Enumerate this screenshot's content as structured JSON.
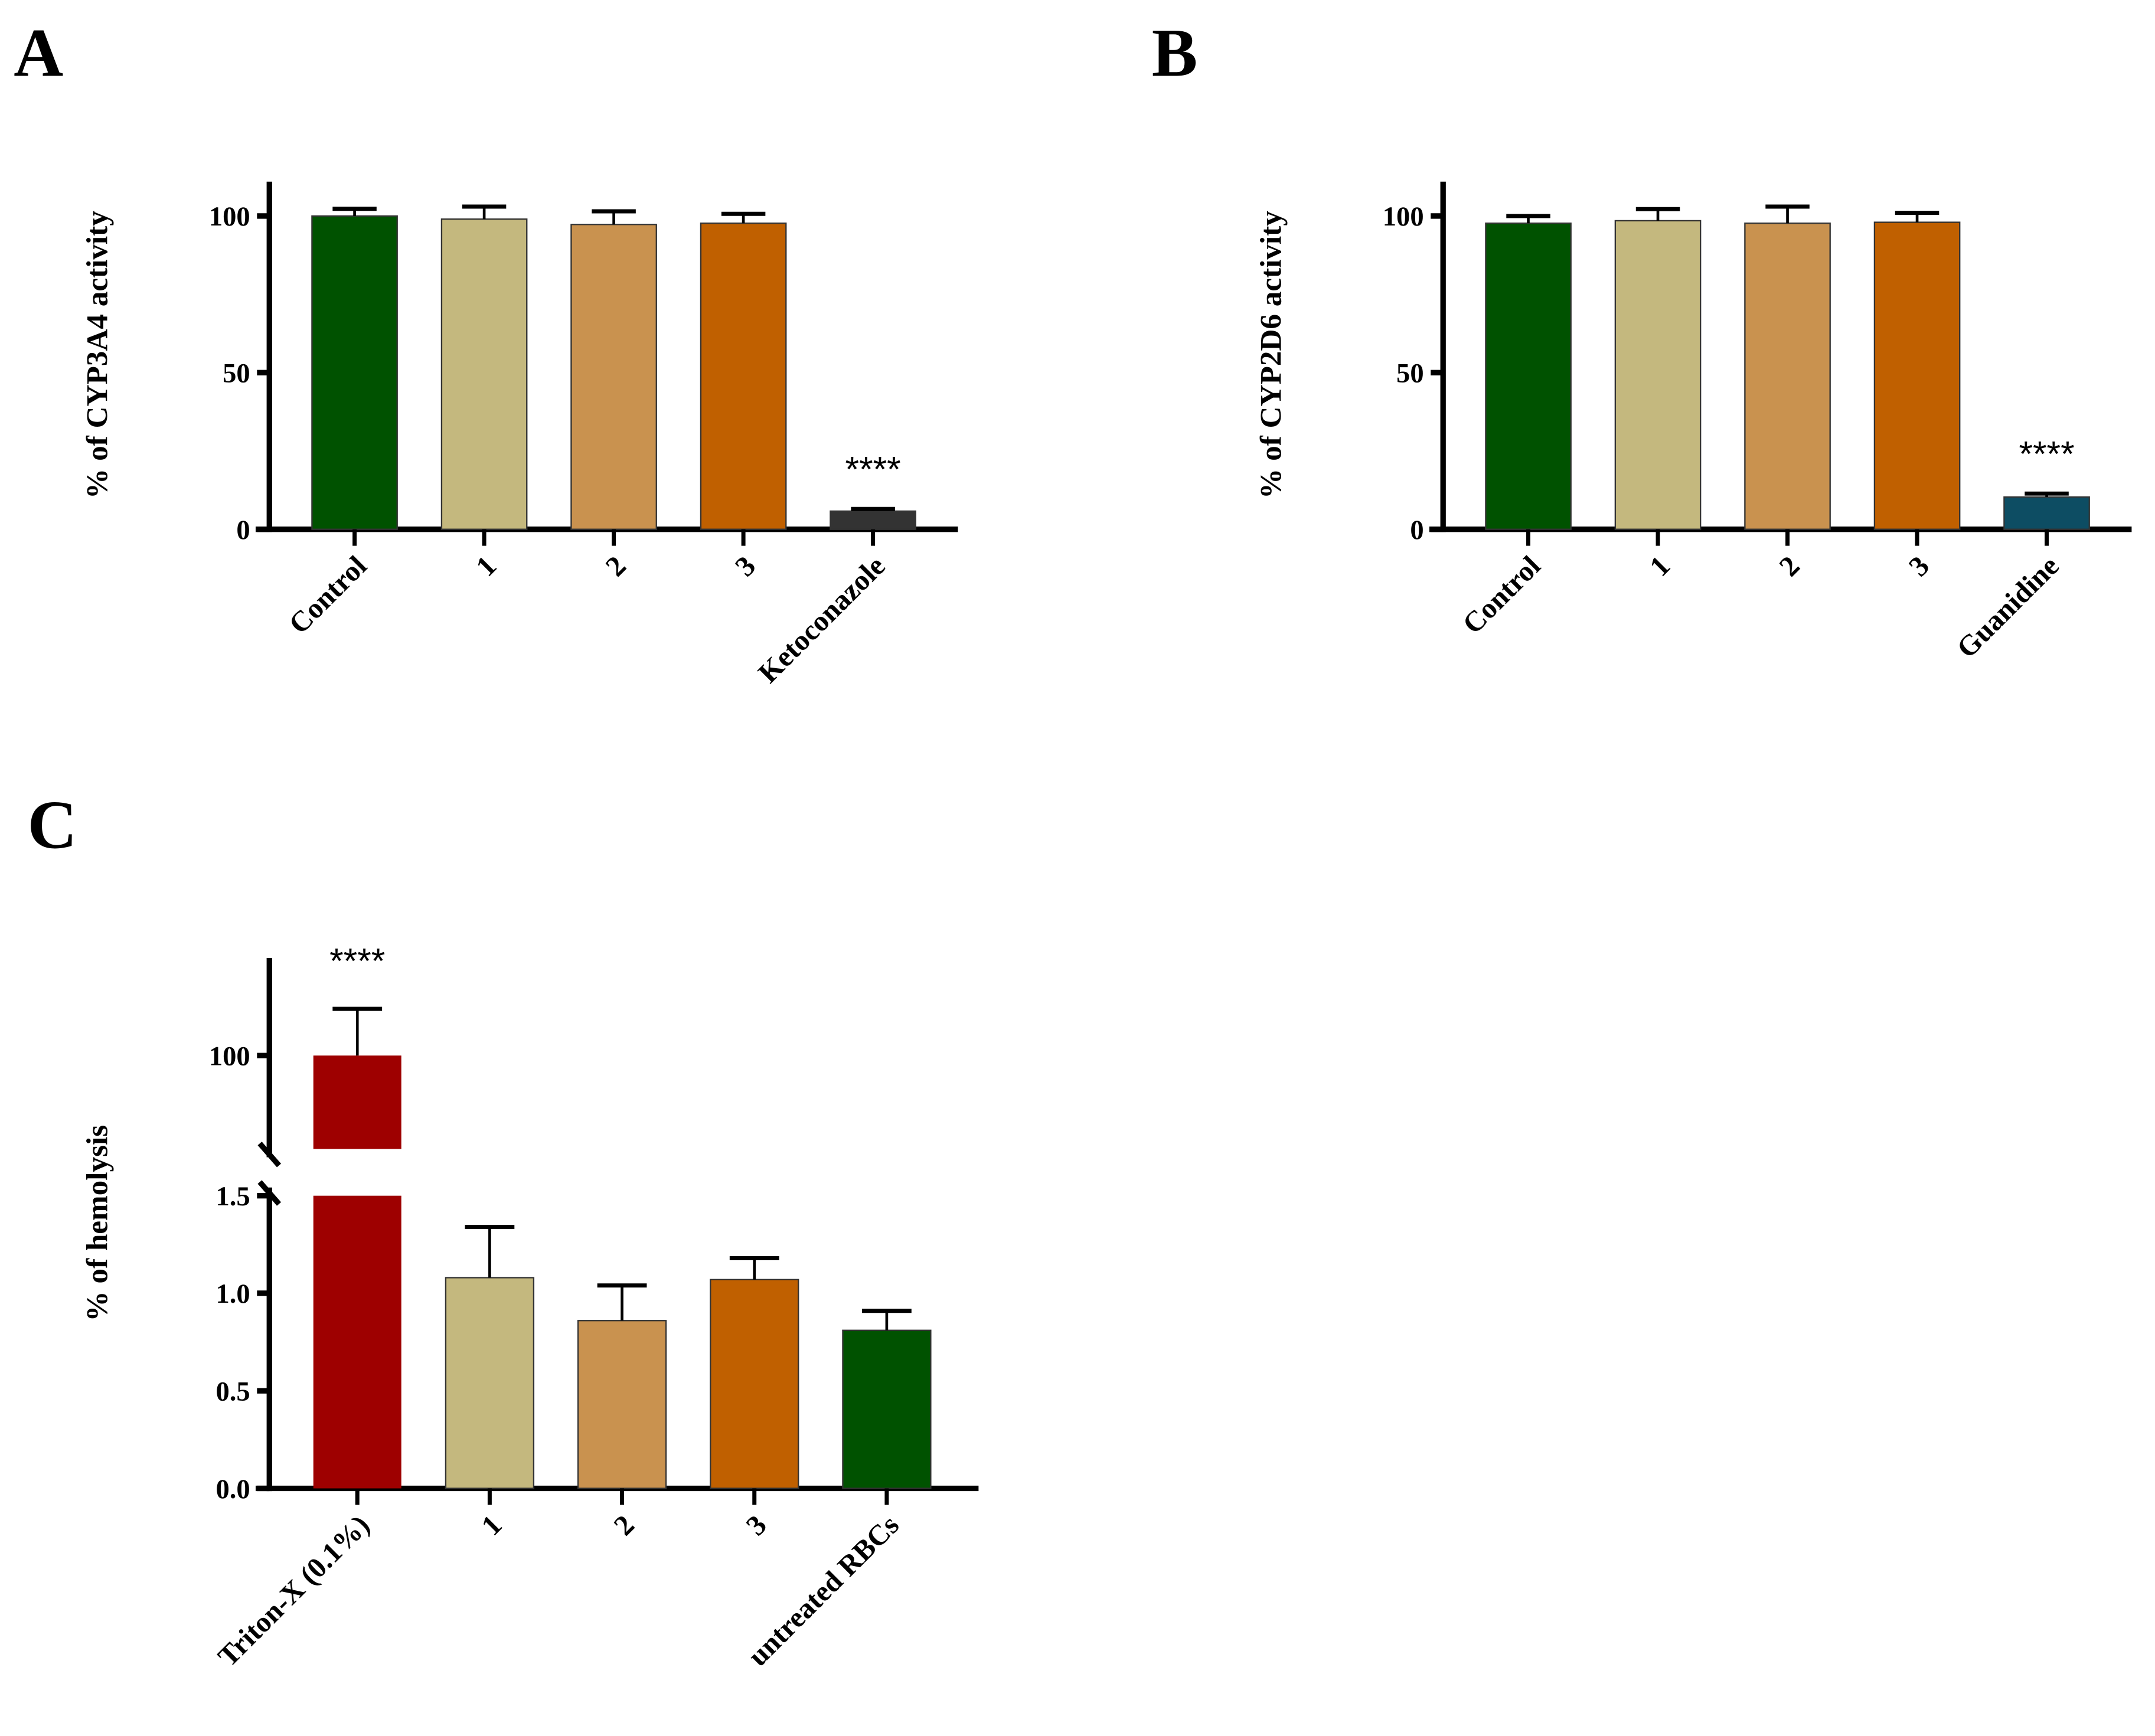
{
  "chart_data": [
    {
      "type": "bar",
      "panel": "A",
      "ylabel": "% of CYP3A4 activity",
      "xlabel": "",
      "categories": [
        "Control",
        "1",
        "2",
        "3",
        "Ketoconazole"
      ],
      "values": [
        100,
        99,
        97.3,
        97.7,
        5.8
      ],
      "errors_upper": [
        102.3,
        103,
        101.5,
        100.7,
        6.5
      ],
      "colors": [
        "#005200",
        "#c4b87e",
        "#c9924f",
        "#c06000",
        "#333333"
      ],
      "annotations": [
        {
          "category": "Ketoconazole",
          "text": "****"
        }
      ],
      "yticks": [
        0,
        50,
        100
      ],
      "ylim": [
        0,
        110
      ],
      "grid": false
    },
    {
      "type": "bar",
      "panel": "B",
      "ylabel": "% of CYP2D6 activity",
      "xlabel": "",
      "categories": [
        "Control",
        "1",
        "2",
        "3",
        "Guanidine"
      ],
      "values": [
        97.7,
        98.5,
        97.7,
        98,
        10.3
      ],
      "errors_upper": [
        100,
        102.2,
        103,
        101,
        11.4
      ],
      "colors": [
        "#005200",
        "#c4b87e",
        "#c9924f",
        "#c06000",
        "#0d4d63"
      ],
      "annotations": [
        {
          "category": "Guanidine",
          "text": "****"
        }
      ],
      "yticks": [
        0,
        50,
        100
      ],
      "ylim": [
        0,
        110
      ],
      "grid": false
    },
    {
      "type": "bar",
      "panel": "C",
      "ylabel": "% of hemolysis",
      "xlabel": "",
      "categories": [
        "Triton-X (0.1%)",
        "1",
        "2",
        "3",
        "untreated RBCs"
      ],
      "values": [
        100,
        1.08,
        0.86,
        1.07,
        0.81
      ],
      "errors_upper": [
        110,
        1.34,
        1.04,
        1.18,
        0.91
      ],
      "colors": [
        "#9e0000",
        "#c4b87e",
        "#c9924f",
        "#c06000",
        "#005200"
      ],
      "annotations": [
        {
          "category": "Triton-X (0.1%)",
          "text": "****"
        }
      ],
      "axis_break": true,
      "yticks_lower": [
        "0.0",
        "0.5",
        "1.0",
        "1.5"
      ],
      "yticks_upper": [
        "100"
      ],
      "ylim_lower": [
        0,
        1.5
      ],
      "ylim_upper": [
        80,
        120
      ],
      "grid": false
    }
  ]
}
